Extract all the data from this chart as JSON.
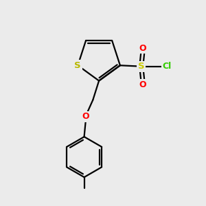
{
  "background_color": "#ebebeb",
  "bond_color": "#000000",
  "S_thiophene_color": "#b8b800",
  "S_sulfonyl_color": "#cccc00",
  "O_color": "#ff0000",
  "Cl_color": "#33cc00",
  "line_width": 1.6,
  "figsize": [
    3.0,
    3.0
  ],
  "dpi": 100,
  "xlim": [
    0,
    10
  ],
  "ylim": [
    0,
    10
  ]
}
